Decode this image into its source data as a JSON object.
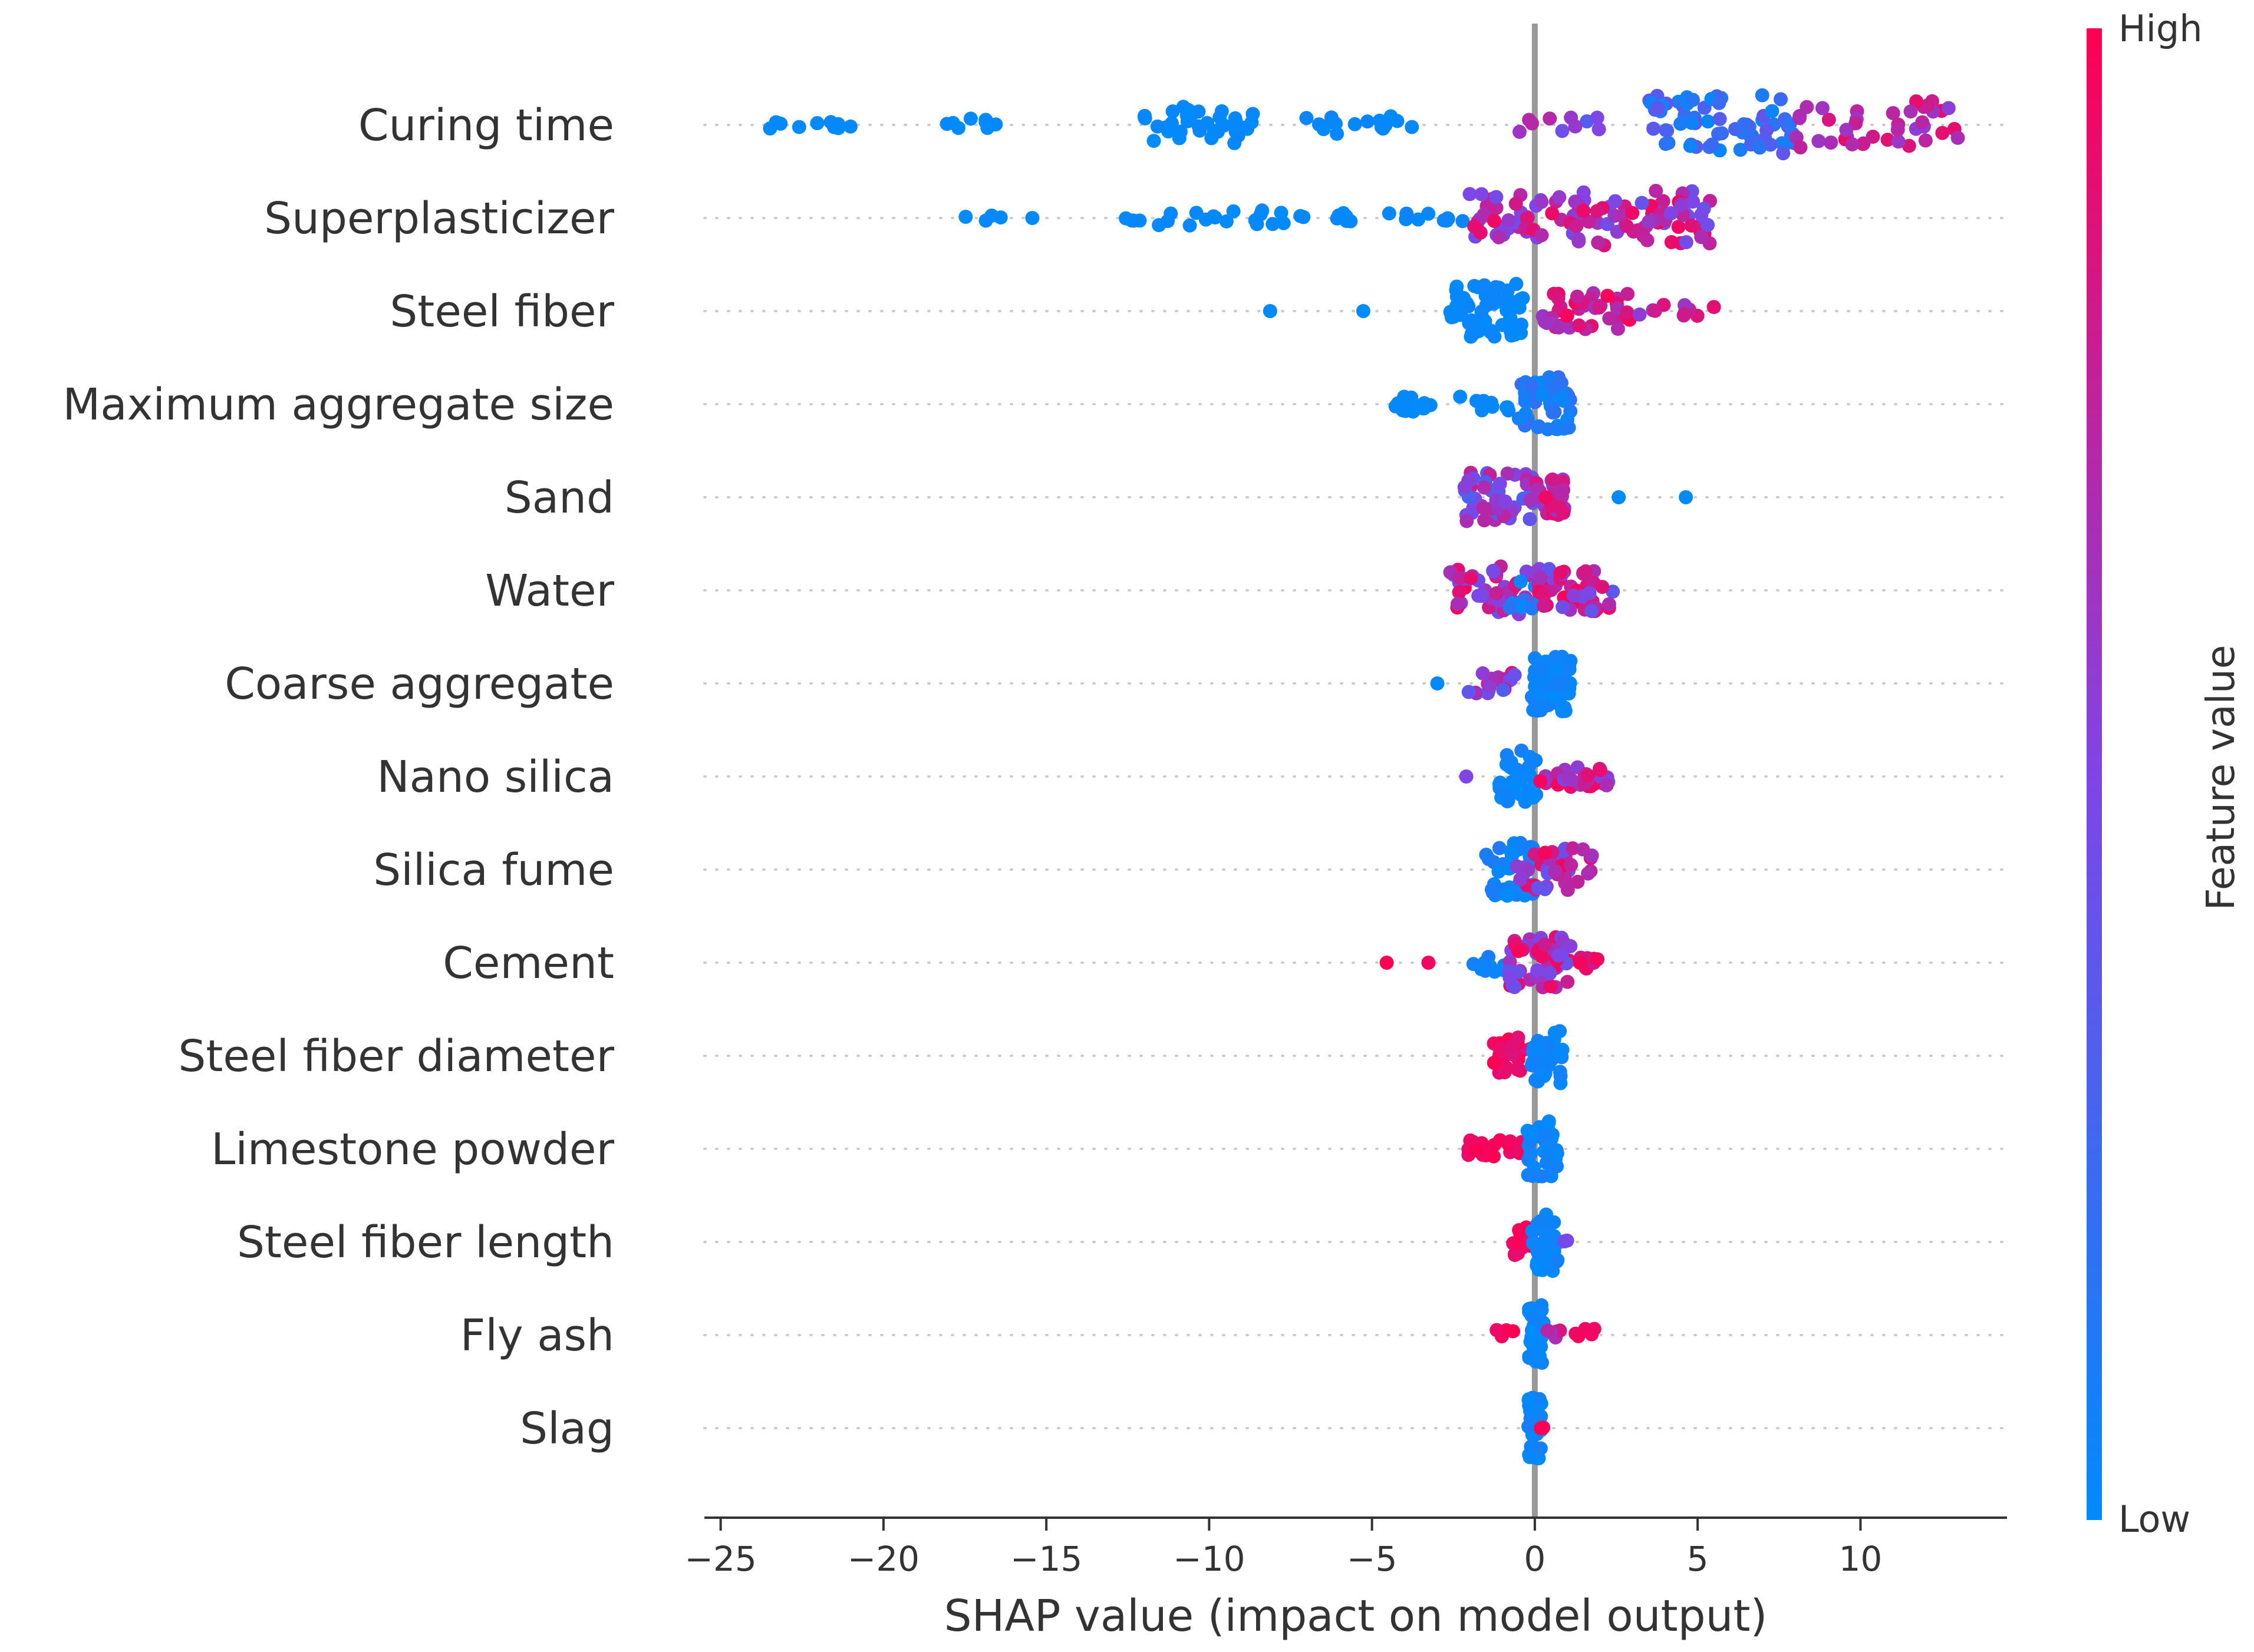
{
  "chart_data": {
    "type": "scatter",
    "subtype": "shap-beeswarm-summary",
    "xlabel": "SHAP value (impact on model output)",
    "xlim": [
      -25.5,
      14.5
    ],
    "xticks": [
      -25,
      -20,
      -15,
      -10,
      -5,
      0,
      5,
      10
    ],
    "xtick_labels": [
      "−25",
      "−20",
      "−15",
      "−10",
      "−5",
      "0",
      "5",
      "10"
    ],
    "grid": false,
    "zero_line": true,
    "colorbar": {
      "title": "Feature value",
      "high_label": "High",
      "low_label": "Low",
      "low_color": "#008bfb",
      "high_color": "#ff0052",
      "placement": "right"
    },
    "features": [
      {
        "name": "Curing time",
        "clusters": [
          {
            "x0": -24,
            "x1": -21,
            "n": 10,
            "spread": 0.15,
            "c0": 0.0,
            "c1": 0.02
          },
          {
            "x0": -18.5,
            "x1": -16.5,
            "n": 8,
            "spread": 0.25,
            "c0": 0.0,
            "c1": 0.02
          },
          {
            "x0": -12,
            "x1": -8.5,
            "n": 36,
            "spread": 0.6,
            "c0": 0.0,
            "c1": 0.04
          },
          {
            "x0": -7.5,
            "x1": -3.5,
            "n": 16,
            "spread": 0.3,
            "c0": 0.0,
            "c1": 0.05
          },
          {
            "x0": -1.5,
            "x1": 2,
            "n": 10,
            "spread": 0.25,
            "c0": 0.3,
            "c1": 0.75
          },
          {
            "x0": 3.5,
            "x1": 8,
            "n": 70,
            "spread": 1.0,
            "c0": 0.02,
            "c1": 0.4
          },
          {
            "x0": 8,
            "x1": 13,
            "n": 40,
            "spread": 0.8,
            "c0": 0.55,
            "c1": 0.95
          }
        ]
      },
      {
        "name": "Superplasticizer",
        "clusters": [
          {
            "x0": -17.5,
            "x1": -15,
            "n": 5,
            "spread": 0.1,
            "c0": 0.0,
            "c1": 0.02
          },
          {
            "x0": -13,
            "x1": -8,
            "n": 20,
            "spread": 0.25,
            "c0": 0.0,
            "c1": 0.03
          },
          {
            "x0": -8,
            "x1": -5.5,
            "n": 10,
            "spread": 0.2,
            "c0": 0.0,
            "c1": 0.03
          },
          {
            "x0": -4.5,
            "x1": -2,
            "n": 10,
            "spread": 0.15,
            "c0": 0.0,
            "c1": 0.05
          },
          {
            "x0": -2,
            "x1": 1,
            "n": 40,
            "spread": 0.8,
            "c0": 0.45,
            "c1": 0.95
          },
          {
            "x0": 1,
            "x1": 5.5,
            "n": 70,
            "spread": 0.9,
            "c0": 0.4,
            "c1": 0.98
          }
        ]
      },
      {
        "name": "Steel fiber",
        "clusters": [
          {
            "x0": -8.3,
            "x1": -8.1,
            "n": 1,
            "spread": 0.0,
            "c0": 0.0,
            "c1": 0.02
          },
          {
            "x0": -5.4,
            "x1": -5.2,
            "n": 1,
            "spread": 0.0,
            "c0": 0.0,
            "c1": 0.02
          },
          {
            "x0": -2.6,
            "x1": -0.3,
            "n": 60,
            "spread": 0.9,
            "c0": 0.0,
            "c1": 0.05
          },
          {
            "x0": 0.2,
            "x1": 3,
            "n": 45,
            "spread": 0.6,
            "c0": 0.6,
            "c1": 0.98
          },
          {
            "x0": 2.5,
            "x1": 5.5,
            "n": 12,
            "spread": 0.2,
            "c0": 0.55,
            "c1": 0.98
          }
        ]
      },
      {
        "name": "Maximum aggregate size",
        "clusters": [
          {
            "x0": -4.3,
            "x1": -3.2,
            "n": 18,
            "spread": 0.25,
            "c0": 0.0,
            "c1": 0.03
          },
          {
            "x0": -2.3,
            "x1": -0.5,
            "n": 10,
            "spread": 0.25,
            "c0": 0.0,
            "c1": 0.04
          },
          {
            "x0": -0.5,
            "x1": 1.1,
            "n": 55,
            "spread": 0.9,
            "c0": 0.02,
            "c1": 0.25
          }
        ]
      },
      {
        "name": "Sand",
        "clusters": [
          {
            "x0": -2.2,
            "x1": 0,
            "n": 50,
            "spread": 0.8,
            "c0": 0.3,
            "c1": 0.8
          },
          {
            "x0": 0,
            "x1": 1,
            "n": 30,
            "spread": 0.6,
            "c0": 0.5,
            "c1": 0.95
          },
          {
            "x0": 2.5,
            "x1": 2.7,
            "n": 1,
            "spread": 0.0,
            "c0": 0.0,
            "c1": 0.03
          },
          {
            "x0": 4.5,
            "x1": 4.7,
            "n": 1,
            "spread": 0.0,
            "c0": 0.0,
            "c1": 0.03
          }
        ]
      },
      {
        "name": "Water",
        "clusters": [
          {
            "x0": -2.6,
            "x1": 0,
            "n": 45,
            "spread": 0.8,
            "c0": 0.4,
            "c1": 0.98
          },
          {
            "x0": -0.8,
            "x1": 0.5,
            "n": 15,
            "spread": 0.6,
            "c0": 0.0,
            "c1": 0.2
          },
          {
            "x0": 0,
            "x1": 2.4,
            "n": 45,
            "spread": 0.7,
            "c0": 0.35,
            "c1": 0.98
          }
        ]
      },
      {
        "name": "Coarse aggregate",
        "clusters": [
          {
            "x0": -3.0,
            "x1": -2.8,
            "n": 1,
            "spread": 0.0,
            "c0": 0.0,
            "c1": 0.02
          },
          {
            "x0": -2.1,
            "x1": -0.6,
            "n": 18,
            "spread": 0.35,
            "c0": 0.3,
            "c1": 0.98
          },
          {
            "x0": -0.1,
            "x1": 1.1,
            "n": 55,
            "spread": 0.95,
            "c0": 0.0,
            "c1": 0.08
          }
        ]
      },
      {
        "name": "Nano silica",
        "clusters": [
          {
            "x0": -2.3,
            "x1": -2.1,
            "n": 1,
            "spread": 0.0,
            "c0": 0.4,
            "c1": 0.5
          },
          {
            "x0": -1.2,
            "x1": 0.1,
            "n": 40,
            "spread": 0.85,
            "c0": 0.0,
            "c1": 0.1
          },
          {
            "x0": 0.1,
            "x1": 2.3,
            "n": 30,
            "spread": 0.35,
            "c0": 0.5,
            "c1": 0.98
          }
        ]
      },
      {
        "name": "Silica fume",
        "clusters": [
          {
            "x0": -1.5,
            "x1": 0,
            "n": 40,
            "spread": 0.9,
            "c0": 0.0,
            "c1": 0.15
          },
          {
            "x0": -0.6,
            "x1": 1.8,
            "n": 40,
            "spread": 0.7,
            "c0": 0.4,
            "c1": 0.98
          }
        ]
      },
      {
        "name": "Cement",
        "clusters": [
          {
            "x0": -4.6,
            "x1": -4.4,
            "n": 1,
            "spread": 0.0,
            "c0": 0.95,
            "c1": 1.0
          },
          {
            "x0": -3.3,
            "x1": -3.1,
            "n": 1,
            "spread": 0.0,
            "c0": 0.95,
            "c1": 1.0
          },
          {
            "x0": -2.0,
            "x1": -0.8,
            "n": 10,
            "spread": 0.3,
            "c0": 0.0,
            "c1": 0.1
          },
          {
            "x0": -0.8,
            "x1": 1.1,
            "n": 60,
            "spread": 0.9,
            "c0": 0.4,
            "c1": 0.98
          },
          {
            "x0": 1.1,
            "x1": 2.0,
            "n": 8,
            "spread": 0.2,
            "c0": 0.8,
            "c1": 1.0
          }
        ]
      },
      {
        "name": "Steel fiber diameter",
        "clusters": [
          {
            "x0": -1.3,
            "x1": 0,
            "n": 30,
            "spread": 0.6,
            "c0": 0.85,
            "c1": 1.0
          },
          {
            "x0": -0.1,
            "x1": 0.9,
            "n": 35,
            "spread": 0.9,
            "c0": 0.0,
            "c1": 0.08
          }
        ]
      },
      {
        "name": "Limestone powder",
        "clusters": [
          {
            "x0": -2.2,
            "x1": -0.2,
            "n": 25,
            "spread": 0.3,
            "c0": 0.9,
            "c1": 1.0
          },
          {
            "x0": -0.3,
            "x1": 0.7,
            "n": 40,
            "spread": 0.9,
            "c0": 0.0,
            "c1": 0.1
          }
        ]
      },
      {
        "name": "Steel fiber length",
        "clusters": [
          {
            "x0": -0.7,
            "x1": 0,
            "n": 20,
            "spread": 0.5,
            "c0": 0.85,
            "c1": 1.0
          },
          {
            "x0": -0.1,
            "x1": 0.7,
            "n": 35,
            "spread": 0.95,
            "c0": 0.0,
            "c1": 0.08
          },
          {
            "x0": 0.8,
            "x1": 1.0,
            "n": 2,
            "spread": 0.05,
            "c0": 0.4,
            "c1": 0.5
          }
        ]
      },
      {
        "name": "Fly ash",
        "clusters": [
          {
            "x0": -1.2,
            "x1": -0.5,
            "n": 5,
            "spread": 0.2,
            "c0": 0.9,
            "c1": 1.0
          },
          {
            "x0": -0.2,
            "x1": 0.3,
            "n": 40,
            "spread": 1.0,
            "c0": 0.0,
            "c1": 0.08
          },
          {
            "x0": 0.3,
            "x1": 0.8,
            "n": 5,
            "spread": 0.2,
            "c0": 0.6,
            "c1": 0.9
          },
          {
            "x0": 1.2,
            "x1": 1.9,
            "n": 5,
            "spread": 0.25,
            "c0": 0.9,
            "c1": 1.0
          }
        ]
      },
      {
        "name": "Slag",
        "clusters": [
          {
            "x0": -0.2,
            "x1": 0.2,
            "n": 30,
            "spread": 1.0,
            "c0": 0.0,
            "c1": 0.1
          },
          {
            "x0": 0.1,
            "x1": 0.3,
            "n": 2,
            "spread": 0.1,
            "c0": 0.95,
            "c1": 1.0
          }
        ]
      }
    ]
  }
}
